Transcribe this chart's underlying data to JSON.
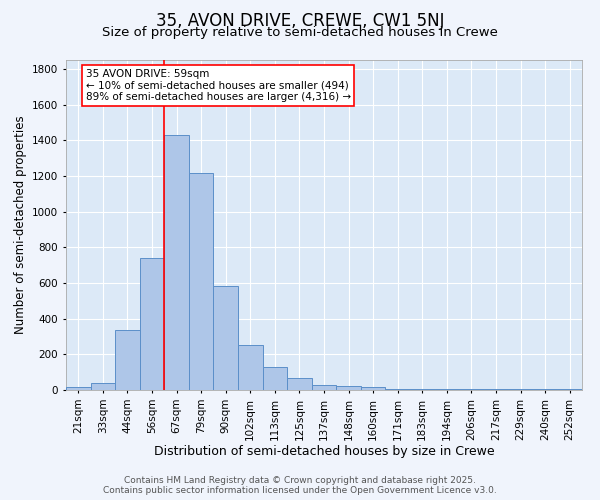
{
  "title": "35, AVON DRIVE, CREWE, CW1 5NJ",
  "subtitle": "Size of property relative to semi-detached houses in Crewe",
  "xlabel": "Distribution of semi-detached houses by size in Crewe",
  "ylabel": "Number of semi-detached properties",
  "categories": [
    "21sqm",
    "33sqm",
    "44sqm",
    "56sqm",
    "67sqm",
    "79sqm",
    "90sqm",
    "102sqm",
    "113sqm",
    "125sqm",
    "137sqm",
    "148sqm",
    "160sqm",
    "171sqm",
    "183sqm",
    "194sqm",
    "206sqm",
    "217sqm",
    "229sqm",
    "240sqm",
    "252sqm"
  ],
  "values": [
    15,
    40,
    335,
    740,
    1430,
    1215,
    585,
    255,
    130,
    65,
    30,
    25,
    15,
    8,
    8,
    5,
    5,
    3,
    5,
    3,
    8
  ],
  "bar_color": "#aec6e8",
  "bar_edge_color": "#5b8fc9",
  "bg_color": "#dce9f7",
  "grid_color": "#ffffff",
  "fig_bg_color": "#f0f4fc",
  "red_line_x": 3.5,
  "annotation_text": "35 AVON DRIVE: 59sqm\n← 10% of semi-detached houses are smaller (494)\n89% of semi-detached houses are larger (4,316) →",
  "ylim": [
    0,
    1850
  ],
  "yticks": [
    0,
    200,
    400,
    600,
    800,
    1000,
    1200,
    1400,
    1600,
    1800
  ],
  "footer": "Contains HM Land Registry data © Crown copyright and database right 2025.\nContains public sector information licensed under the Open Government Licence v3.0.",
  "title_fontsize": 12,
  "subtitle_fontsize": 9.5,
  "xlabel_fontsize": 9,
  "ylabel_fontsize": 8.5,
  "tick_fontsize": 7.5,
  "annotation_fontsize": 7.5,
  "footer_fontsize": 6.5
}
